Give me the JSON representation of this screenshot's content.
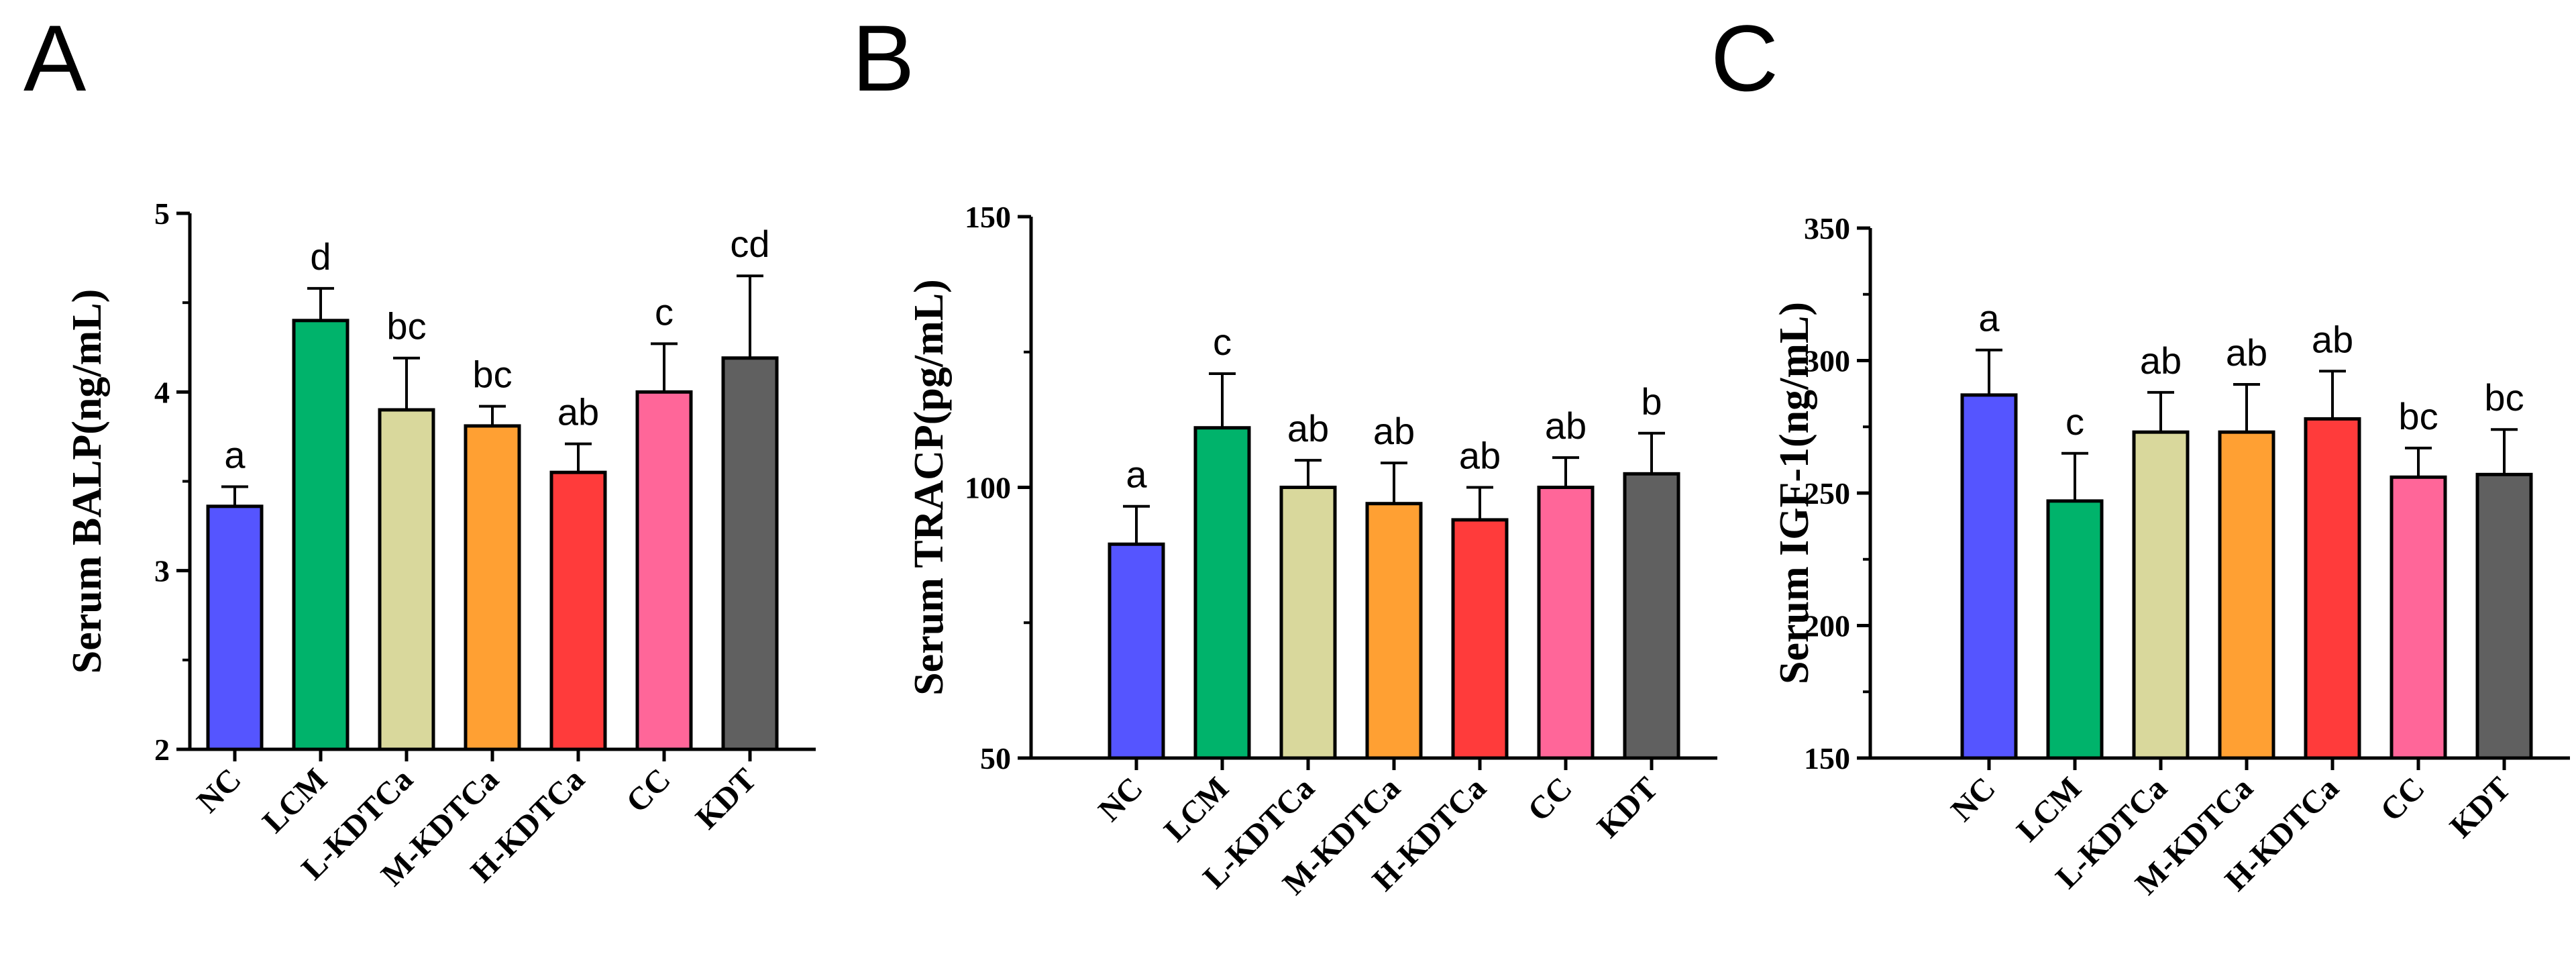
{
  "figure": {
    "panels": [
      "A",
      "B",
      "C"
    ]
  },
  "colors": {
    "NC": "#5555ff",
    "LCM": "#00b36b",
    "L-KDTCa": "#d9d89c",
    "M-KDTCa": "#ffa033",
    "H-KDTCa": "#ff3b3b",
    "CC": "#ff6699",
    "KDT": "#606060"
  },
  "chart_data": [
    {
      "panel": "A",
      "type": "bar",
      "title": "",
      "xlabel": "",
      "ylabel": "Serum BALP(ng/mL)",
      "ylim": [
        2,
        5
      ],
      "yticks": [
        "2",
        "3",
        "4",
        "5"
      ],
      "categories": [
        "NC",
        "LCM",
        "L-KDTCa",
        "M-KDTCa",
        "H-KDTCa",
        "CC",
        "KDT"
      ],
      "values": [
        3.36,
        4.4,
        3.9,
        3.81,
        3.55,
        4.0,
        4.19
      ],
      "errors": [
        0.11,
        0.18,
        0.29,
        0.11,
        0.16,
        0.27,
        0.46
      ],
      "letters": [
        "a",
        "d",
        "bc",
        "bc",
        "ab",
        "c",
        "cd"
      ]
    },
    {
      "panel": "B",
      "type": "bar",
      "title": "",
      "xlabel": "",
      "ylabel": "Serum TRACP(pg/mL)",
      "ylim": [
        50,
        150
      ],
      "yticks": [
        "50",
        "100",
        "150"
      ],
      "categories": [
        "NC",
        "LCM",
        "L-KDTCa",
        "M-KDTCa",
        "H-KDTCa",
        "CC",
        "KDT"
      ],
      "values": [
        89.5,
        111,
        100,
        97,
        94,
        100,
        102.5
      ],
      "errors": [
        7,
        10,
        5,
        7.5,
        6,
        5.5,
        7.5
      ],
      "letters": [
        "a",
        "c",
        "ab",
        "ab",
        "ab",
        "ab",
        "b"
      ]
    },
    {
      "panel": "C",
      "type": "bar",
      "title": "",
      "xlabel": "",
      "ylabel": "Serum IGF-1(ng/mL)",
      "ylim": [
        150,
        350
      ],
      "yticks": [
        "150",
        "200",
        "250",
        "300",
        "350"
      ],
      "categories": [
        "NC",
        "LCM",
        "L-KDTCa",
        "M-KDTCa",
        "H-KDTCa",
        "CC",
        "KDT"
      ],
      "values": [
        287,
        247,
        273,
        273,
        278,
        256,
        257
      ],
      "errors": [
        17,
        18,
        15,
        18,
        18,
        11,
        17
      ],
      "letters": [
        "a",
        "c",
        "ab",
        "ab",
        "ab",
        "bc",
        "bc"
      ]
    }
  ]
}
